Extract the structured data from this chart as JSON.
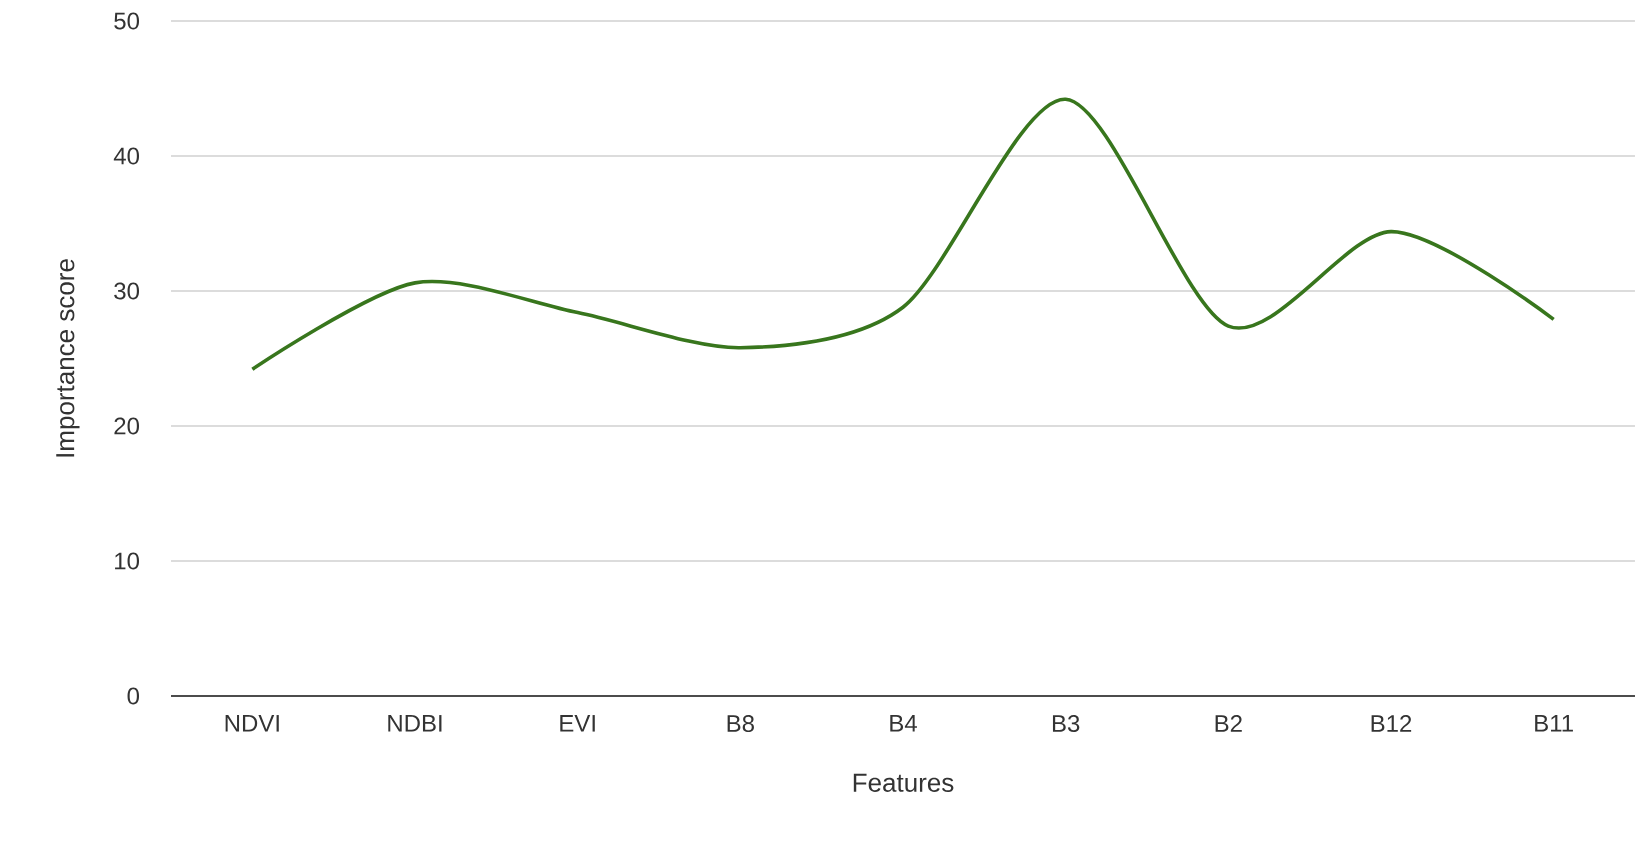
{
  "chart_data": {
    "type": "line",
    "xlabel": "Features",
    "ylabel": "Importance score",
    "categories": [
      "NDVI",
      "NDBI",
      "EVI",
      "B8",
      "B4",
      "B3",
      "B2",
      "B12",
      "B11"
    ],
    "values": [
      24.2,
      30.6,
      28.4,
      25.8,
      28.8,
      44.2,
      27.4,
      34.4,
      27.9
    ],
    "color": "#38761d",
    "marker": "none",
    "line_style": "solid",
    "ylim": [
      0,
      50
    ],
    "yticks": [
      0,
      10,
      20,
      30,
      40,
      50
    ],
    "grid": "y"
  }
}
